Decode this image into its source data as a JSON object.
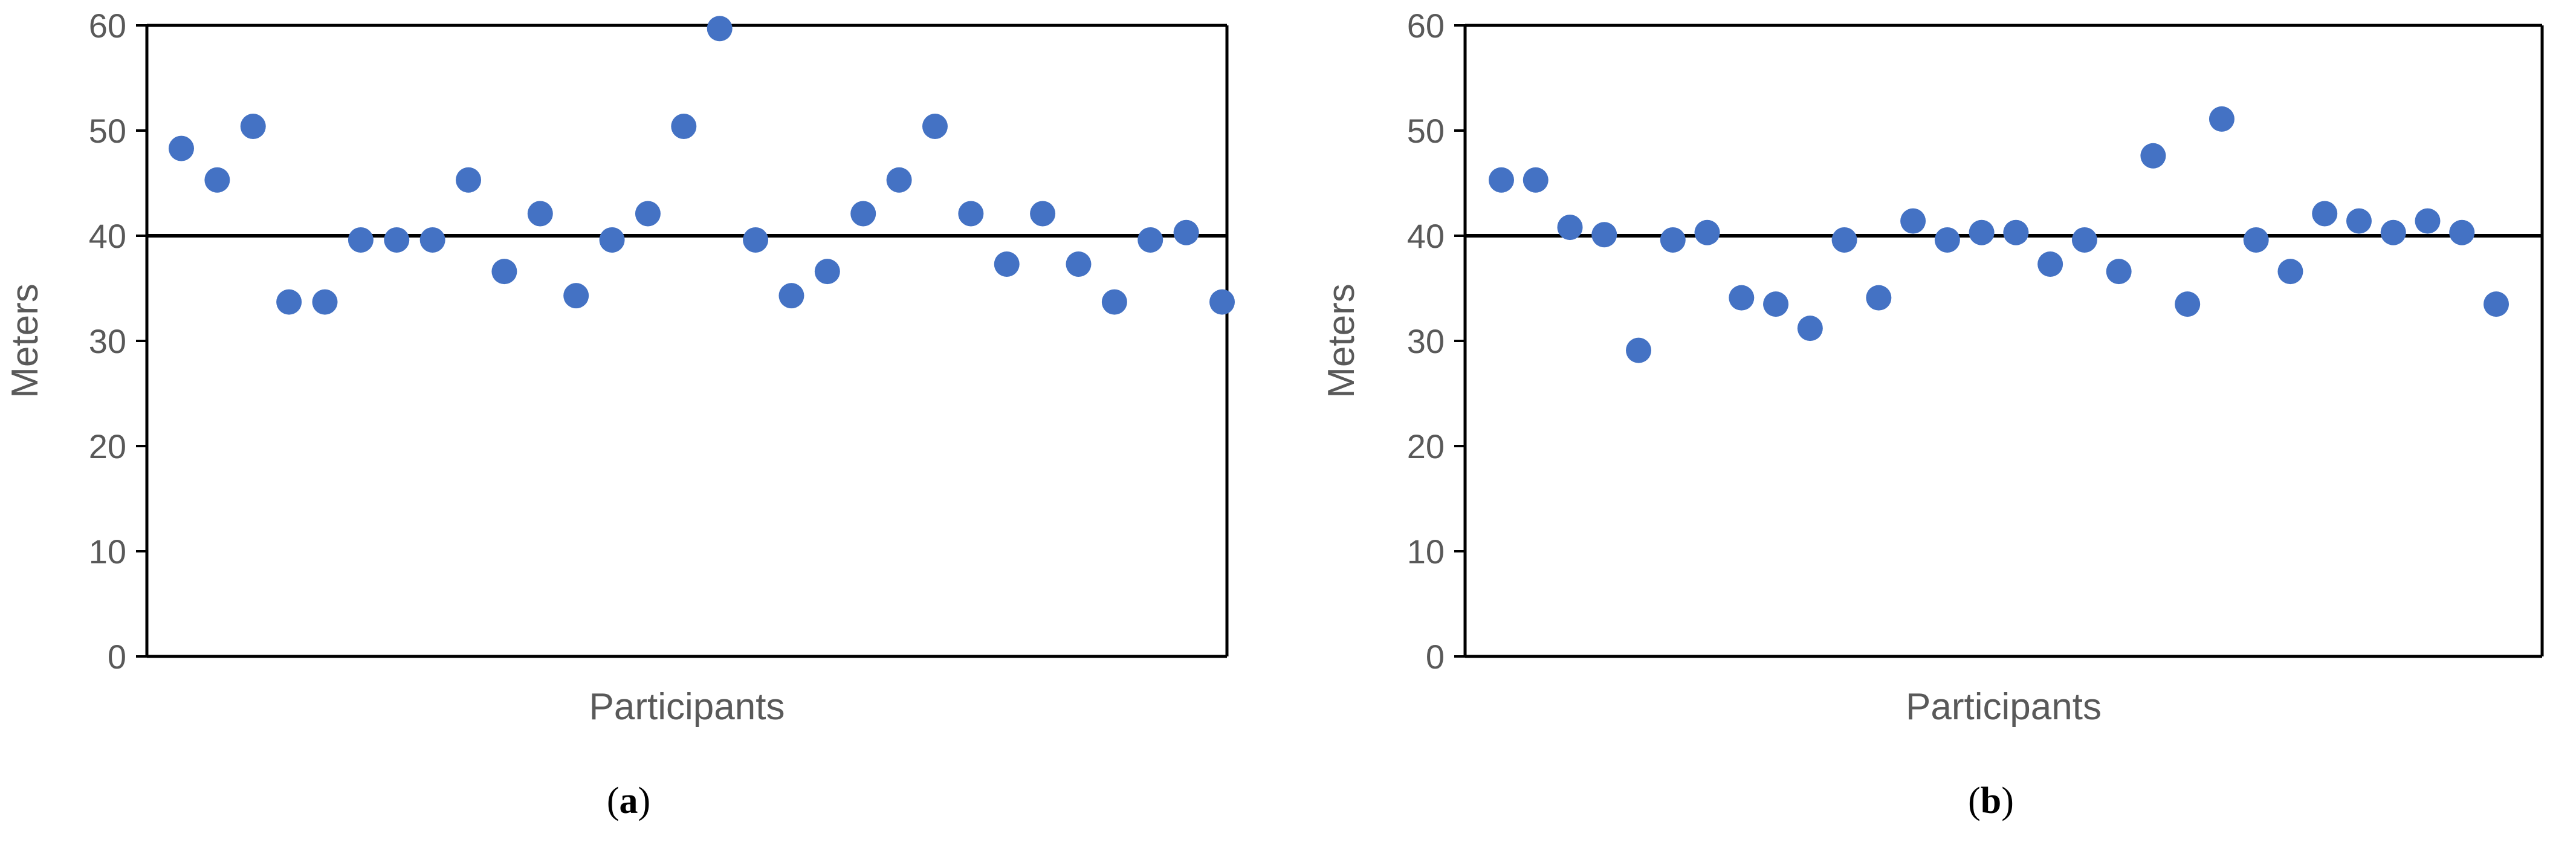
{
  "colors": {
    "marker": "#4472C4",
    "axis": "#000000",
    "tick_text": "#595959"
  },
  "chart_data": [
    {
      "type": "scatter",
      "panel_letter": "a",
      "title": "",
      "xlabel": "Participants",
      "ylabel": "Meters",
      "ylim": [
        0,
        60
      ],
      "yticks": [
        "0",
        "10",
        "20",
        "30",
        "40",
        "50",
        "60"
      ],
      "grid": false,
      "reference_line": 40,
      "series": [
        {
          "x": [
            1,
            2,
            3,
            4,
            5,
            6,
            7,
            8,
            9,
            10,
            11,
            12,
            13,
            14,
            15,
            16,
            17,
            18,
            19,
            20,
            21,
            22,
            23,
            24,
            25,
            26,
            27,
            28,
            29,
            30
          ],
          "values": [
            48.3,
            45.3,
            50.4,
            33.7,
            33.7,
            39.6,
            39.6,
            39.6,
            45.3,
            36.6,
            42.1,
            34.3,
            39.6,
            42.1,
            50.4,
            59.7,
            39.6,
            34.3,
            36.6,
            42.1,
            45.3,
            50.4,
            42.1,
            37.3,
            42.1,
            37.3,
            33.7,
            39.6,
            40.3,
            33.7
          ]
        }
      ]
    },
    {
      "type": "scatter",
      "panel_letter": "b",
      "title": "",
      "xlabel": "Participants",
      "ylabel": "Meters",
      "ylim": [
        0,
        60
      ],
      "yticks": [
        "0",
        "10",
        "20",
        "30",
        "40",
        "50",
        "60"
      ],
      "grid": false,
      "reference_line": 40,
      "series": [
        {
          "x": [
            1,
            2,
            3,
            4,
            5,
            6,
            7,
            8,
            9,
            10,
            11,
            12,
            13,
            14,
            15,
            16,
            17,
            18,
            19,
            20,
            21,
            22,
            23,
            24,
            25,
            26,
            27,
            28,
            29,
            30
          ],
          "values": [
            45.3,
            45.3,
            40.8,
            40.1,
            29.1,
            39.6,
            40.3,
            34.1,
            33.5,
            31.2,
            39.6,
            34.1,
            41.4,
            39.6,
            40.3,
            40.3,
            37.3,
            39.6,
            36.6,
            47.6,
            33.5,
            51.1,
            39.6,
            36.6,
            42.1,
            41.4,
            40.3,
            41.4,
            40.3,
            33.5
          ]
        }
      ]
    }
  ]
}
